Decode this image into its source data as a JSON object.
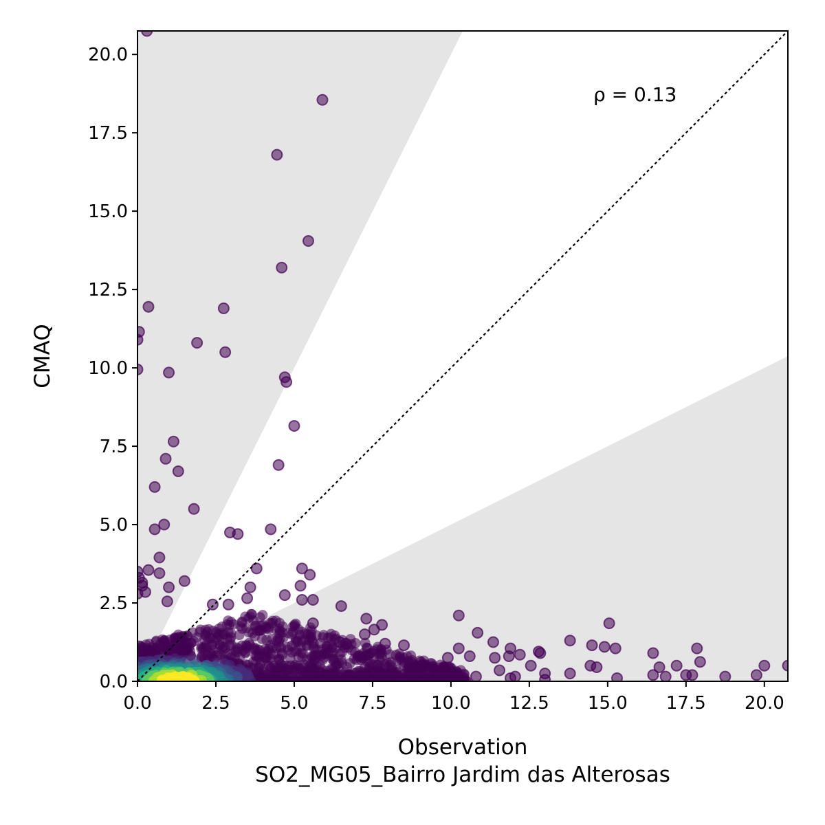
{
  "chart_data": {
    "type": "scatter",
    "xlabel": "Observation",
    "xlabel2": "SO2_MG05_Bairro Jardim das Alterosas",
    "ylabel": "CMAQ",
    "annotation": "ρ = 0.13",
    "xlim": [
      0,
      20.75
    ],
    "ylim": [
      0,
      20.75
    ],
    "xticks": [
      "0.0",
      "2.5",
      "5.0",
      "7.5",
      "10.0",
      "12.5",
      "15.0",
      "17.5",
      "20.0"
    ],
    "yticks": [
      "0.0",
      "2.5",
      "5.0",
      "7.5",
      "10.0",
      "12.5",
      "15.0",
      "17.5",
      "20.0"
    ],
    "one_to_one_line": true,
    "shaded_band": {
      "upper_slope": 2.0,
      "lower_slope": 0.5,
      "color": "#e5e5e5"
    },
    "colormap": "viridis",
    "point_color": "#440154",
    "outliers": [
      [
        0.3,
        20.75
      ],
      [
        5.9,
        18.55
      ],
      [
        4.45,
        16.8
      ],
      [
        5.45,
        14.05
      ],
      [
        4.6,
        13.2
      ],
      [
        0.35,
        11.95
      ],
      [
        2.75,
        11.9
      ],
      [
        0.05,
        11.15
      ],
      [
        0.0,
        10.9
      ],
      [
        1.9,
        10.8
      ],
      [
        2.8,
        10.5
      ],
      [
        0.0,
        9.95
      ],
      [
        1.0,
        9.85
      ],
      [
        4.7,
        9.7
      ],
      [
        4.75,
        9.55
      ],
      [
        5.0,
        8.15
      ],
      [
        1.15,
        7.65
      ],
      [
        0.9,
        7.1
      ],
      [
        4.5,
        6.9
      ],
      [
        1.3,
        6.7
      ],
      [
        0.55,
        6.2
      ],
      [
        1.8,
        5.5
      ],
      [
        0.85,
        5.0
      ],
      [
        0.55,
        4.85
      ],
      [
        4.25,
        4.85
      ],
      [
        2.95,
        4.75
      ],
      [
        3.2,
        4.7
      ],
      [
        0.7,
        3.95
      ],
      [
        3.8,
        3.6
      ],
      [
        5.25,
        3.6
      ],
      [
        0.35,
        3.55
      ],
      [
        0.0,
        3.5
      ],
      [
        0.7,
        3.45
      ],
      [
        5.5,
        3.4
      ],
      [
        0.05,
        3.3
      ],
      [
        1.5,
        3.2
      ],
      [
        0.15,
        3.15
      ],
      [
        5.2,
        3.05
      ],
      [
        0.15,
        3.05
      ],
      [
        1.0,
        3.0
      ],
      [
        3.6,
        3.0
      ],
      [
        0.25,
        2.85
      ],
      [
        0.0,
        2.8
      ],
      [
        4.7,
        2.75
      ],
      [
        3.5,
        2.65
      ],
      [
        5.6,
        2.6
      ],
      [
        5.25,
        2.6
      ],
      [
        0.95,
        2.55
      ],
      [
        6.5,
        2.4
      ],
      [
        2.4,
        2.45
      ],
      [
        2.9,
        2.45
      ],
      [
        10.25,
        2.1
      ],
      [
        7.3,
        2.0
      ],
      [
        5.6,
        1.85
      ],
      [
        15.05,
        1.85
      ],
      [
        7.8,
        1.8
      ],
      [
        7.55,
        1.65
      ],
      [
        10.85,
        1.55
      ],
      [
        7.25,
        1.5
      ],
      [
        13.8,
        1.3
      ],
      [
        11.35,
        1.25
      ],
      [
        6.45,
        1.25
      ],
      [
        6.65,
        1.2
      ],
      [
        7.9,
        1.2
      ],
      [
        14.5,
        1.15
      ],
      [
        14.9,
        1.1
      ],
      [
        15.25,
        1.05
      ],
      [
        8.5,
        1.15
      ],
      [
        11.9,
        1.05
      ],
      [
        17.85,
        1.05
      ],
      [
        10.25,
        1.05
      ],
      [
        12.8,
        0.95
      ],
      [
        12.85,
        0.9
      ],
      [
        16.45,
        0.9
      ],
      [
        12.2,
        0.85
      ],
      [
        11.85,
        0.8
      ],
      [
        11.4,
        0.75
      ],
      [
        10.6,
        0.8
      ],
      [
        9.9,
        0.75
      ],
      [
        17.95,
        0.62
      ],
      [
        14.45,
        0.5
      ],
      [
        14.65,
        0.45
      ],
      [
        17.2,
        0.5
      ],
      [
        16.65,
        0.45
      ],
      [
        12.55,
        0.5
      ],
      [
        20.0,
        0.5
      ],
      [
        20.75,
        0.5
      ],
      [
        11.55,
        0.35
      ],
      [
        9.25,
        0.35
      ],
      [
        9.0,
        0.4
      ],
      [
        13.0,
        0.25
      ],
      [
        13.8,
        0.25
      ],
      [
        16.45,
        0.2
      ],
      [
        17.5,
        0.2
      ],
      [
        17.7,
        0.2
      ],
      [
        16.85,
        0.15
      ],
      [
        18.75,
        0.15
      ],
      [
        19.75,
        0.2
      ],
      [
        11.9,
        0.1
      ],
      [
        12.05,
        0.15
      ],
      [
        15.3,
        0.1
      ],
      [
        13.0,
        0.05
      ],
      [
        10.8,
        0.15
      ]
    ]
  }
}
